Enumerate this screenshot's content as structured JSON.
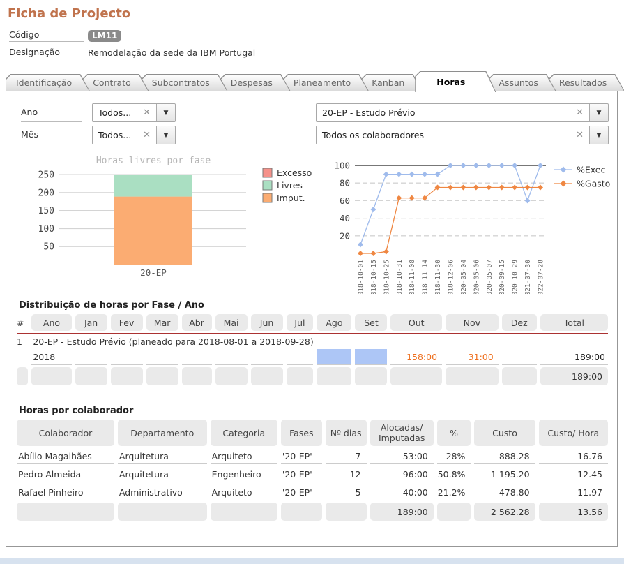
{
  "page": {
    "title": "Ficha de Projecto"
  },
  "fields": {
    "codigo_label": "Código",
    "codigo_value": "LM11",
    "designacao_label": "Designação",
    "designacao_value": "Remodelação da sede da IBM Portugal"
  },
  "tabs": [
    {
      "label": "Identificação",
      "active": false
    },
    {
      "label": "Contrato",
      "active": false
    },
    {
      "label": "Subcontratos",
      "active": false
    },
    {
      "label": "Despesas",
      "active": false
    },
    {
      "label": "Planeamento",
      "active": false
    },
    {
      "label": "Kanban",
      "active": false
    },
    {
      "label": "Horas",
      "active": true
    },
    {
      "label": "Assuntos",
      "active": false
    },
    {
      "label": "Resultados",
      "active": false
    }
  ],
  "filters": {
    "ano": {
      "label": "Ano",
      "value": "Todos..."
    },
    "mes": {
      "label": "Mês",
      "value": "Todos..."
    },
    "fase": {
      "value": "20-EP - Estudo Prévio"
    },
    "colaboradores": {
      "value": "Todos os colaboradores"
    },
    "clear_icon": "✕",
    "arrow_icon": "▼"
  },
  "chart_data": [
    {
      "type": "bar",
      "stacked": true,
      "title": "Horas livres por fase",
      "categories": [
        "20-EP"
      ],
      "series": [
        {
          "name": "Excesso",
          "color": "#f5918a",
          "values": [
            0
          ]
        },
        {
          "name": "Livres",
          "color": "#aadfc2",
          "values": [
            61
          ]
        },
        {
          "name": "Imput.",
          "color": "#fbac72",
          "values": [
            189
          ]
        }
      ],
      "ylim": [
        0,
        260
      ],
      "yticks": [
        50,
        100,
        150,
        200,
        250
      ],
      "legend_position": "right",
      "grid": true
    },
    {
      "type": "line",
      "x": [
        "2018-10-01",
        "2018-10-15",
        "2018-10-25",
        "2018-10-31",
        "2018-11-08",
        "2018-11-14",
        "2018-11-30",
        "2018-12-06",
        "2020-05-04",
        "2020-05-06",
        "2020-05-07",
        "2020-09-15",
        "2020-10-29",
        "2021-07-30",
        "2022-07-28"
      ],
      "series": [
        {
          "name": "%Exec",
          "color": "#9fbbec",
          "values": [
            10,
            50,
            90,
            90,
            90,
            90,
            90,
            100,
            100,
            100,
            100,
            100,
            100,
            60,
            100
          ]
        },
        {
          "name": "%Gasto",
          "color": "#ef8742",
          "values": [
            0,
            0,
            2,
            63,
            63,
            63,
            75,
            75,
            75,
            75,
            75,
            75,
            75,
            75,
            75
          ]
        }
      ],
      "ylim": [
        0,
        105
      ],
      "yticks": [
        20,
        40,
        60,
        80,
        100
      ],
      "ref_line": 100,
      "legend_position": "right",
      "grid": true
    }
  ],
  "table_fase": {
    "heading": "Distribuição de horas por Fase / Ano",
    "columns": [
      "#",
      "Ano",
      "Jan",
      "Fev",
      "Mar",
      "Abr",
      "Mai",
      "Jun",
      "Jul",
      "Ago",
      "Set",
      "Out",
      "Nov",
      "Dez",
      "Total"
    ],
    "group_row": {
      "index": "1",
      "label": "20-EP - Estudo Prévio (planeado para 2018-08-01 a 2018-09-28)"
    },
    "rows": [
      {
        "ano": "2018",
        "months": [
          "",
          "",
          "",
          "",
          "",
          "",
          "",
          "",
          "",
          "158:00",
          "31:00",
          ""
        ],
        "highlight": [
          7,
          8
        ],
        "total": "189:00"
      }
    ],
    "footer_total": "189:00",
    "value_color": "#ee6f1e",
    "highlight_color": "#adc6f6"
  },
  "table_colaborador": {
    "heading": "Horas por colaborador",
    "columns": [
      "Colaborador",
      "Departamento",
      "Categoria",
      "Fases",
      "Nº dias",
      "Alocadas/ Imputadas",
      "%",
      "Custo",
      "Custo/ Hora"
    ],
    "rows": [
      [
        "Abílio Magalhães",
        "Arquitetura",
        "Arquiteto",
        "'20-EP'",
        "7",
        "53:00",
        "28%",
        "888.28",
        "16.76"
      ],
      [
        "Pedro Almeida",
        "Arquitetura",
        "Engenheiro",
        "'20-EP'",
        "12",
        "96:00",
        "50.8%",
        "1 195.20",
        "12.45"
      ],
      [
        "Rafael Pinheiro",
        "Administrativo",
        "Arquiteto",
        "'20-EP'",
        "5",
        "40:00",
        "21.2%",
        "478.80",
        "11.97"
      ]
    ],
    "footer": {
      "alocadas": "189:00",
      "custo": "2 562.28",
      "custo_hora": "13.56"
    }
  }
}
